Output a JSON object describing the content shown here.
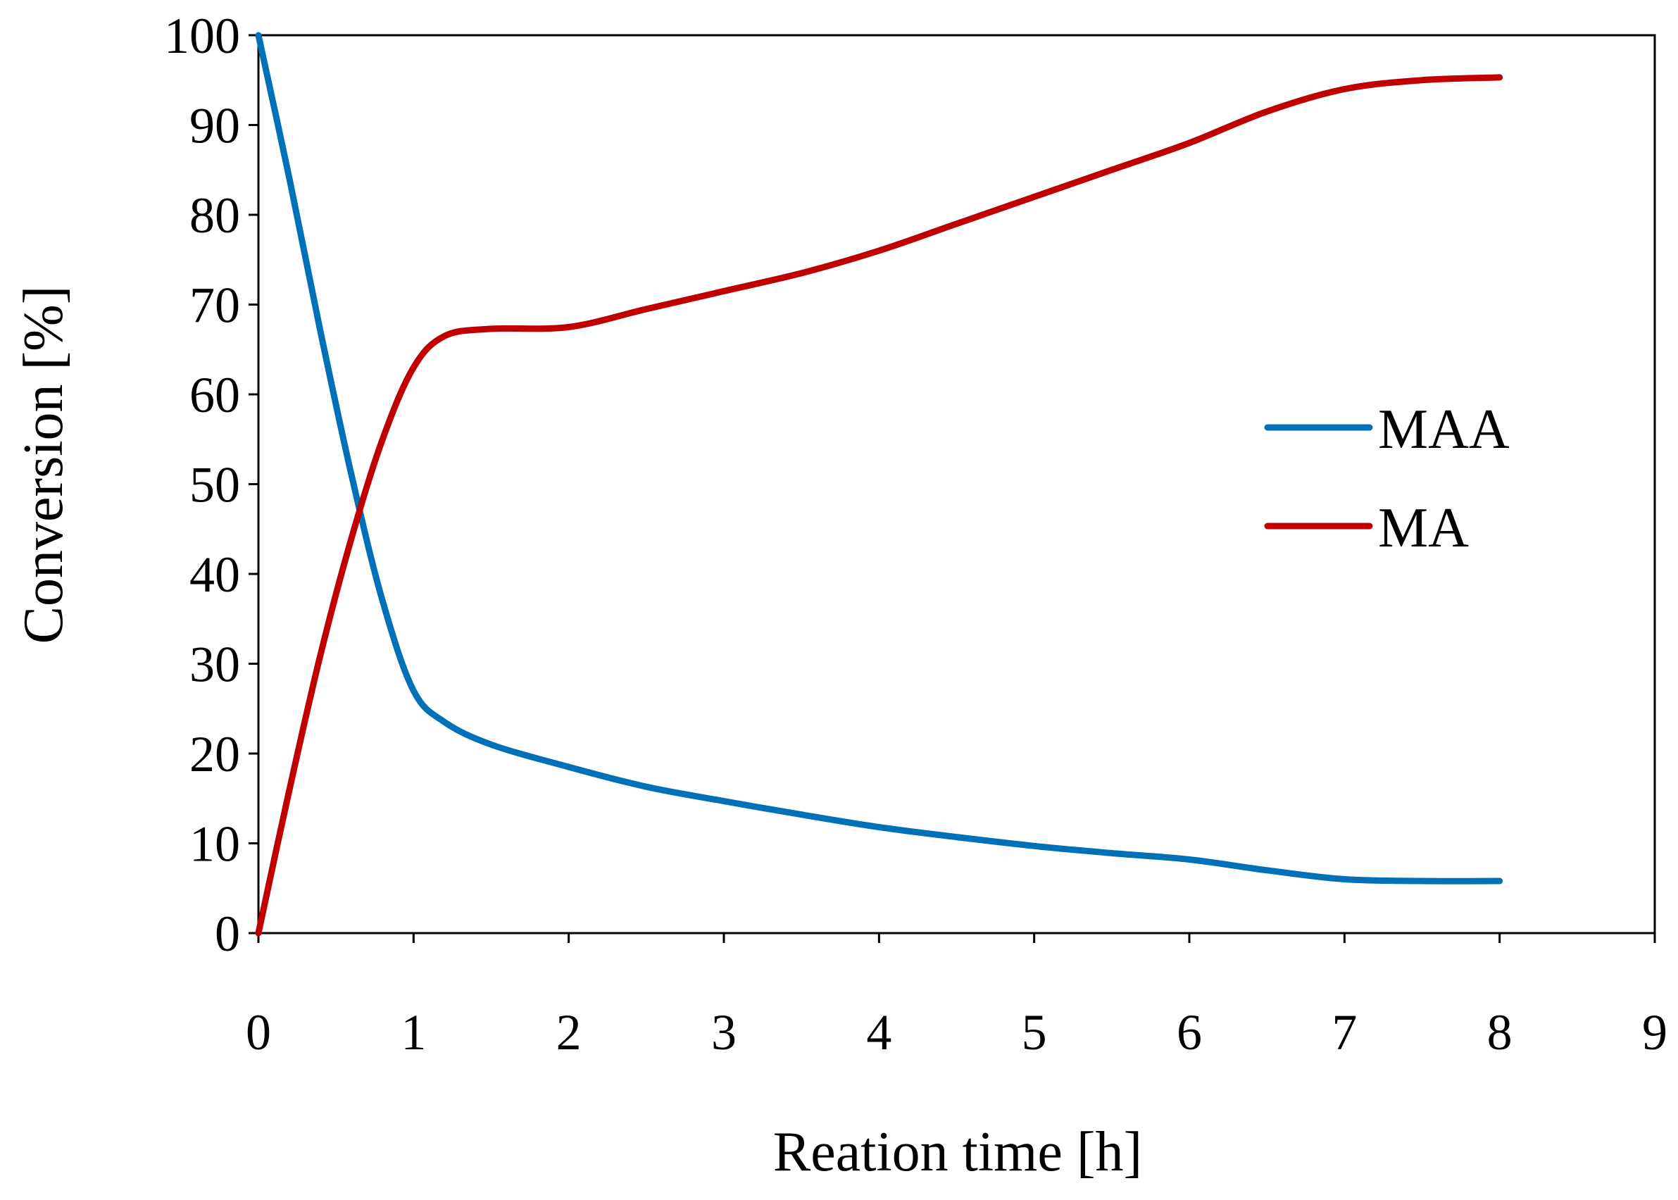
{
  "chart_data": {
    "type": "line",
    "title": "",
    "xlabel": "Reation time [h]",
    "ylabel": "Conversion [%]",
    "xlim": [
      0,
      9
    ],
    "ylim": [
      0,
      100
    ],
    "xticks": [
      "0",
      "1",
      "2",
      "3",
      "4",
      "5",
      "6",
      "7",
      "8",
      "9"
    ],
    "yticks": [
      "0",
      "10",
      "20",
      "30",
      "40",
      "50",
      "60",
      "70",
      "80",
      "90",
      "100"
    ],
    "grid": false,
    "legend_position": "center-right",
    "series": [
      {
        "name": "MAA",
        "color": "#0070b8",
        "x": [
          0,
          0.2,
          0.4,
          0.6,
          0.8,
          1.0,
          1.2,
          1.5,
          2.0,
          2.5,
          3.0,
          3.5,
          4.0,
          4.5,
          5.0,
          5.5,
          6.0,
          6.5,
          7.0,
          7.5,
          8.0
        ],
        "y": [
          100,
          84,
          67,
          51,
          37,
          27,
          23.5,
          21,
          18.5,
          16.3,
          14.7,
          13.2,
          11.8,
          10.7,
          9.7,
          8.9,
          8.2,
          7.0,
          6.0,
          5.8,
          5.8
        ]
      },
      {
        "name": "MA",
        "color": "#c00000",
        "x": [
          0,
          0.2,
          0.4,
          0.6,
          0.8,
          1.0,
          1.2,
          1.5,
          2.0,
          2.5,
          3.0,
          3.5,
          4.0,
          4.5,
          5.0,
          5.5,
          6.0,
          6.5,
          7.0,
          7.5,
          8.0
        ],
        "y": [
          0,
          16,
          31,
          44,
          55,
          63,
          66.5,
          67.3,
          67.5,
          69.5,
          71.5,
          73.5,
          76,
          79,
          82,
          85,
          88,
          91.5,
          94,
          95,
          95.3
        ]
      }
    ]
  }
}
